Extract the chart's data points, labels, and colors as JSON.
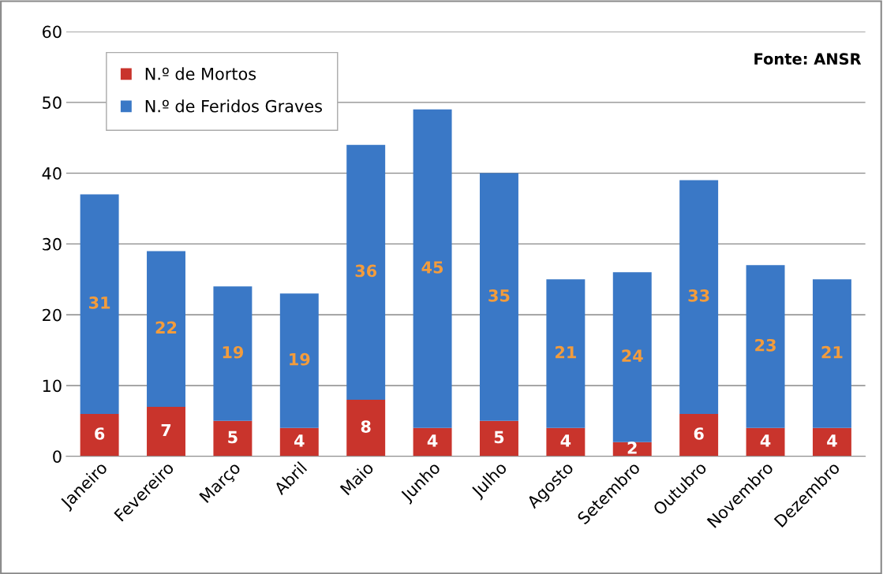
{
  "chart_data": {
    "type": "bar",
    "stacked": true,
    "categories": [
      "Janeiro",
      "Fevereiro",
      "Março",
      "Abril",
      "Maio",
      "Junho",
      "Julho",
      "Agosto",
      "Setembro",
      "Outubro",
      "Novembro",
      "Dezembro"
    ],
    "series": [
      {
        "name": "N.º de Mortos",
        "color": "#c9342c",
        "values": [
          6,
          7,
          5,
          4,
          8,
          4,
          5,
          4,
          2,
          6,
          4,
          4
        ]
      },
      {
        "name": "N.º de Feridos Graves",
        "color": "#3a78c6",
        "values": [
          31,
          22,
          19,
          19,
          36,
          45,
          35,
          21,
          24,
          33,
          23,
          21
        ]
      }
    ],
    "ylim": [
      0,
      60
    ],
    "yticks": [
      0,
      10,
      20,
      30,
      40,
      50,
      60
    ],
    "grid": "y",
    "legend": "top left",
    "data_labels": true,
    "annotations": [
      "Fonte: ANSR"
    ]
  }
}
